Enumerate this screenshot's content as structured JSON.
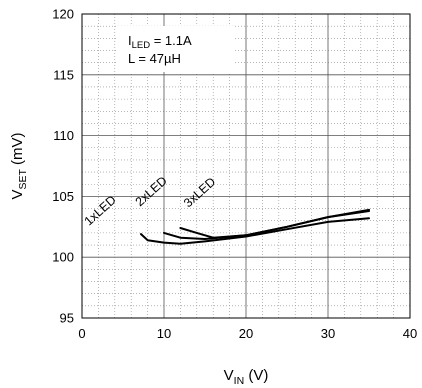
{
  "chart_data": {
    "type": "line",
    "title": "",
    "xlabel": {
      "main": "V",
      "sub": "IN",
      "unit": "(V)"
    },
    "ylabel": {
      "main": "V",
      "sub": "SET",
      "unit": "(mV)"
    },
    "xlim": [
      0,
      40
    ],
    "ylim": [
      95,
      120
    ],
    "x_ticks": [
      0,
      10,
      20,
      30,
      40
    ],
    "y_ticks": [
      95,
      100,
      105,
      110,
      115,
      120
    ],
    "grid": true,
    "annotation": {
      "line1": {
        "main": "I",
        "sub": "LED",
        "rest": " = 1.1A"
      },
      "line2": "L = 47µH"
    },
    "series": [
      {
        "name": "1xLED",
        "x": [
          7.2,
          8,
          10,
          12,
          15,
          20,
          25,
          30,
          35
        ],
        "y": [
          101.9,
          101.4,
          101.2,
          101.1,
          101.3,
          101.7,
          102.3,
          102.9,
          103.2
        ]
      },
      {
        "name": "2xLED",
        "x": [
          10,
          12,
          15,
          20,
          25,
          30,
          35
        ],
        "y": [
          102.0,
          101.6,
          101.5,
          101.8,
          102.5,
          103.3,
          103.8
        ]
      },
      {
        "name": "3xLED",
        "x": [
          12,
          14,
          16,
          20,
          25,
          30,
          35
        ],
        "y": [
          102.4,
          102.0,
          101.6,
          101.8,
          102.5,
          103.3,
          103.9
        ]
      }
    ]
  }
}
